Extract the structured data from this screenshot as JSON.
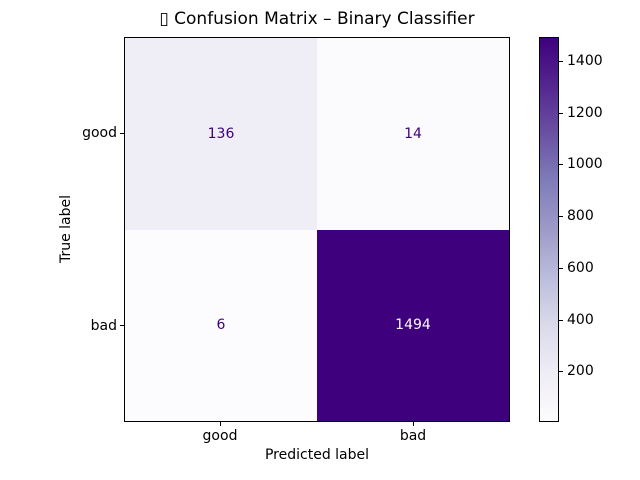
{
  "figure": {
    "title": "▯ Confusion Matrix – Binary Classifier",
    "xlabel": "Predicted label",
    "ylabel": "True label"
  },
  "axis": {
    "x_ticks": [
      "good",
      "bad"
    ],
    "y_ticks": [
      "good",
      "bad"
    ]
  },
  "cells": [
    {
      "value": "136",
      "bg": "#efedf6",
      "fg": "#3f007d"
    },
    {
      "value": "14",
      "bg": "#fbfafd",
      "fg": "#3f007d"
    },
    {
      "value": "6",
      "bg": "#fcfbfd",
      "fg": "#3f007d"
    },
    {
      "value": "1494",
      "bg": "#3f007d",
      "fg": "#fcfbfd"
    }
  ],
  "colorbar": {
    "vmin": 6,
    "vmax": 1494,
    "ticks": [
      200,
      400,
      600,
      800,
      1000,
      1200,
      1400
    ],
    "gradient_stops": [
      "#fcfbfd 0%",
      "#efedf5 12.5%",
      "#dadaeb 25%",
      "#bcbddc 37.5%",
      "#9e9ac8 50%",
      "#807dba 62.5%",
      "#6a51a3 75%",
      "#54278f 87.5%",
      "#3f007d 100%"
    ]
  },
  "chart_data": {
    "type": "heatmap",
    "title": "▯ Confusion Matrix – Binary Classifier",
    "xlabel": "Predicted label",
    "ylabel": "True label",
    "x_categories": [
      "good",
      "bad"
    ],
    "y_categories": [
      "good",
      "bad"
    ],
    "matrix": [
      [
        136,
        14
      ],
      [
        6,
        1494
      ]
    ],
    "colormap": "Purples",
    "vmin": 6,
    "vmax": 1494,
    "colorbar_ticks": [
      200,
      400,
      600,
      800,
      1000,
      1200,
      1400
    ],
    "grid": false,
    "legend_position": "right colorbar"
  }
}
